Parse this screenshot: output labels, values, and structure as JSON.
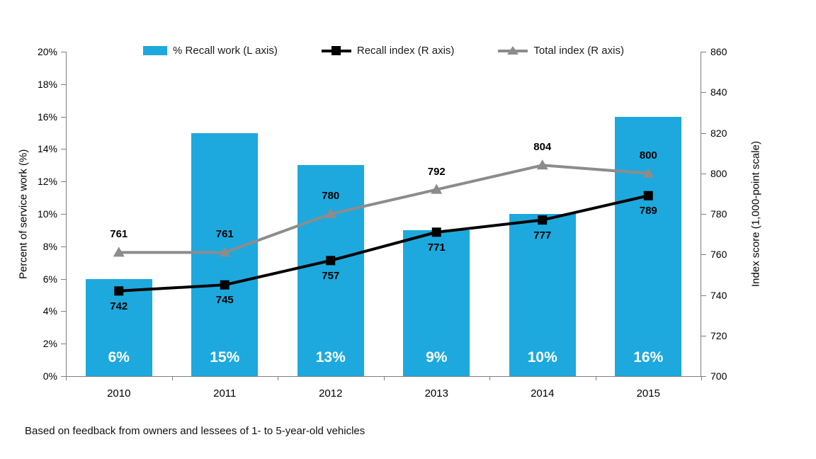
{
  "legend": {
    "items": [
      {
        "label": "% Recall work (L axis)"
      },
      {
        "label": "Recall index (R axis)"
      },
      {
        "label": "Total index (R axis)"
      }
    ]
  },
  "footnote": "Based on feedback from owners and lessees of 1- to 5-year-old vehicles",
  "colors": {
    "bar": "#1DA9DD",
    "recall_line": "#000000",
    "total_line": "#8C8C8C",
    "axis": "#7f7f7f",
    "bar_value_label": "#FFFFFF",
    "data_label": "#000000"
  },
  "chart_data": {
    "type": "bar",
    "title": "",
    "categories": [
      "2010",
      "2011",
      "2012",
      "2013",
      "2014",
      "2015"
    ],
    "series": [
      {
        "name": "% Recall work (L axis)",
        "type": "bar",
        "axis": "left",
        "values": [
          6,
          15,
          13,
          9,
          10,
          16
        ],
        "value_labels": [
          "6%",
          "15%",
          "13%",
          "9%",
          "10%",
          "16%"
        ]
      },
      {
        "name": "Recall index (R axis)",
        "type": "line",
        "axis": "right",
        "marker": "square",
        "values": [
          742,
          745,
          757,
          771,
          777,
          789
        ],
        "value_labels": [
          "742",
          "745",
          "757",
          "771",
          "777",
          "789"
        ],
        "label_position": "below"
      },
      {
        "name": "Total index (R axis)",
        "type": "line",
        "axis": "right",
        "marker": "triangle",
        "values": [
          761,
          761,
          780,
          792,
          804,
          800
        ],
        "value_labels": [
          "761",
          "761",
          "780",
          "792",
          "804",
          "800"
        ],
        "label_position": "above"
      }
    ],
    "xlabel": "",
    "ylabel_left": "Percent of service work (%)",
    "ylabel_right": "Index score (1,000-point scale)",
    "y_left_axis": {
      "min": 0,
      "max": 20,
      "step": 2,
      "tick_labels": [
        "0%",
        "2%",
        "4%",
        "6%",
        "8%",
        "10%",
        "12%",
        "14%",
        "16%",
        "18%",
        "20%"
      ]
    },
    "y_right_axis": {
      "min": 700,
      "max": 860,
      "step": 20,
      "tick_labels": [
        "700",
        "720",
        "740",
        "760",
        "780",
        "800",
        "820",
        "840",
        "860"
      ]
    },
    "grid": false,
    "legend_position": "top"
  }
}
